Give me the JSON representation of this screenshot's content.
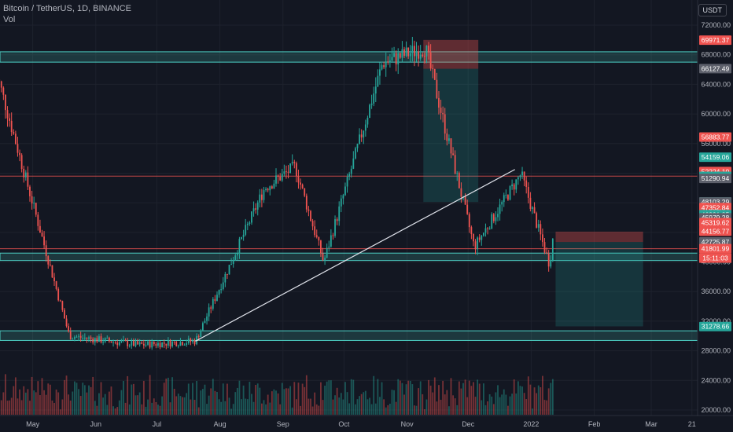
{
  "header": {
    "symbol": "Bitcoin / TetherUS, 1D, BINANCE",
    "volume_label": "Vol"
  },
  "currency_button": "USDT",
  "countdown": "15:11:03",
  "colors": {
    "background": "#131722",
    "up": "#26a69a",
    "down": "#ef5350",
    "zone": "#4dd0c4",
    "trendline": "#e0e3eb",
    "grid": "#1e222d"
  },
  "chart_data": {
    "type": "candlestick",
    "x_labels": [
      "May",
      "Jun",
      "Jul",
      "Aug",
      "Sep",
      "Oct",
      "Nov",
      "Dec",
      "2022",
      "Feb",
      "Mar",
      "21"
    ],
    "y_ticks": [
      72000,
      68000,
      64000,
      60000,
      56000,
      52000,
      48000,
      44000,
      40000,
      36000,
      32000,
      28000,
      24000,
      20000
    ],
    "ylim": [
      20000,
      73500
    ],
    "price_tags": [
      {
        "value": 69971.37,
        "kind": "down"
      },
      {
        "value": 66127.49,
        "kind": "grey"
      },
      {
        "value": 56883.77,
        "kind": "down"
      },
      {
        "value": 54159.06,
        "kind": "up"
      },
      {
        "value": 52224.1,
        "kind": "down"
      },
      {
        "value": 51566.89,
        "kind": "up"
      },
      {
        "value": 51290.94,
        "kind": "grey"
      },
      {
        "value": 48109.5,
        "kind": "up"
      },
      {
        "value": 48103.29,
        "kind": "grey"
      },
      {
        "value": 47352.84,
        "kind": "down"
      },
      {
        "value": 46391.85,
        "kind": "up"
      },
      {
        "value": 45979.28,
        "kind": "grey"
      },
      {
        "value": 45319.62,
        "kind": "down"
      },
      {
        "value": 44156.77,
        "kind": "down"
      },
      {
        "value": 42725.87,
        "kind": "grey"
      },
      {
        "value": 41801.99,
        "kind": "down"
      },
      {
        "value": 31278.66,
        "kind": "up"
      }
    ],
    "key_prices": [
      {
        "date": "2021-04-14",
        "price": 64800
      },
      {
        "date": "2021-05-19",
        "price": 30000
      },
      {
        "date": "2021-06-22",
        "price": 28800
      },
      {
        "date": "2021-07-20",
        "price": 29300
      },
      {
        "date": "2021-08-23",
        "price": 50000
      },
      {
        "date": "2021-09-07",
        "price": 52900
      },
      {
        "date": "2021-09-21",
        "price": 40000
      },
      {
        "date": "2021-10-20",
        "price": 66900
      },
      {
        "date": "2021-11-10",
        "price": 69000
      },
      {
        "date": "2021-12-04",
        "price": 42000
      },
      {
        "date": "2021-12-27",
        "price": 51900
      },
      {
        "date": "2022-01-10",
        "price": 39650
      },
      {
        "date": "2022-01-12",
        "price": 43800
      }
    ],
    "horizontal_zones": [
      {
        "from": 67000,
        "to": 68400
      },
      {
        "from": 40200,
        "to": 41200
      },
      {
        "from": 29400,
        "to": 30700
      }
    ],
    "red_lines": [
      51600,
      41800
    ],
    "trend_line": {
      "from": {
        "date": "2021-07-20",
        "price": 29300
      },
      "to": {
        "date": "2021-12-24",
        "price": 52500
      }
    },
    "short_position": {
      "from_date": "2021-11-09",
      "to_date": "2021-12-06",
      "entry": 66100,
      "stop": 70000,
      "target": 48100
    },
    "short_position_2": {
      "from_date": "2022-01-13",
      "to_date": "2022-02-25",
      "entry": 42700,
      "stop": 44100,
      "target": 31300
    },
    "volume_axis": "bottom",
    "legend": "none"
  }
}
